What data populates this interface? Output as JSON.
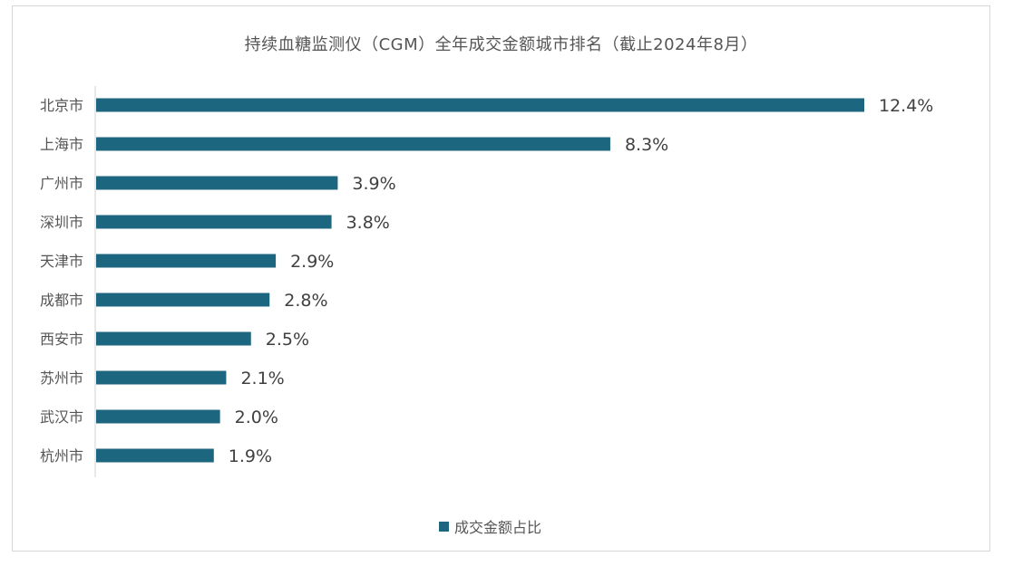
{
  "colors": {
    "bar": "#1d6680",
    "axis": "#d0d0d0",
    "text": "#555555"
  },
  "chart_data": {
    "type": "bar",
    "orientation": "horizontal",
    "title": "持续血糖监测仪（CGM）全年成交金额城市排名（截止2024年8月）",
    "categories": [
      "北京市",
      "上海市",
      "广州市",
      "深圳市",
      "天津市",
      "成都市",
      "西安市",
      "苏州市",
      "武汉市",
      "杭州市"
    ],
    "series": [
      {
        "name": "成交金额占比",
        "values": [
          12.4,
          8.3,
          3.9,
          3.8,
          2.9,
          2.8,
          2.5,
          2.1,
          2.0,
          1.9
        ]
      }
    ],
    "data_labels": [
      "12.4%",
      "8.3%",
      "3.9%",
      "3.8%",
      "2.9%",
      "2.8%",
      "2.5%",
      "2.1%",
      "2.0%",
      "1.9%"
    ],
    "unit": "%",
    "xlim": [
      0,
      12.4
    ],
    "grid": false,
    "legend_position": "bottom"
  }
}
